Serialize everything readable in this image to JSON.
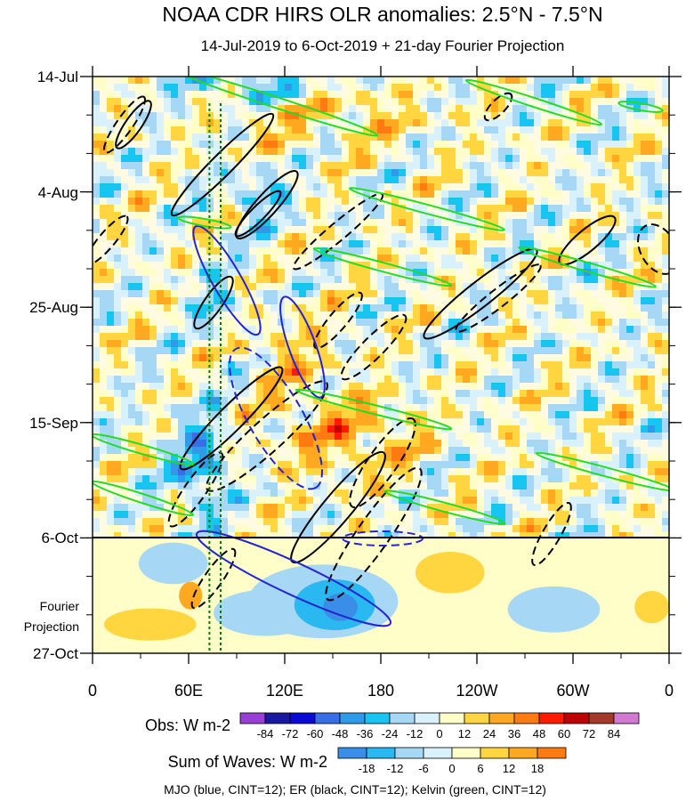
{
  "chart_data": {
    "type": "heatmap",
    "title": "NOAA CDR HIRS OLR anomalies: 2.5°N - 7.5°N",
    "subtitle": "14-Jul-2019 to 6-Oct-2019 + 21-day Fourier Projection",
    "x_tick_labels": [
      "0",
      "60E",
      "120E",
      "180",
      "120W",
      "60W",
      "0"
    ],
    "x_tick_longitudes": [
      0,
      60,
      120,
      180,
      240,
      300,
      360
    ],
    "y_tick_labels": [
      "14-Jul",
      "4-Aug",
      "25-Aug",
      "15-Sep",
      "6-Oct",
      "27-Oct"
    ],
    "y_tick_days": [
      0,
      21,
      42,
      63,
      84,
      105
    ],
    "projection_label_line1": "Fourier",
    "projection_label_line2": "Projection",
    "observation_end_day": 84,
    "grid": false,
    "legend_obs": {
      "label": "Obs: W m-2",
      "levels": [
        "-84",
        "-72",
        "-60",
        "-48",
        "-36",
        "-24",
        "-12",
        "0",
        "12",
        "24",
        "36",
        "48",
        "60",
        "72",
        "84"
      ],
      "colors": [
        "#9a3fd6",
        "#1a1aa0",
        "#0a0ad8",
        "#3a6ee8",
        "#2f9be8",
        "#16c5f0",
        "#a6d8f5",
        "#d9f1fb",
        "#fffdc8",
        "#ffd640",
        "#ffa820",
        "#ff7a10",
        "#ff1a00",
        "#c00000",
        "#a33a2a",
        "#d27ad2"
      ]
    },
    "legend_waves": {
      "label": "Sum of Waves: W m-2",
      "levels": [
        "-18",
        "-12",
        "-6",
        "0",
        "6",
        "12",
        "18"
      ],
      "colors": [
        "#3a8ee8",
        "#29b8f0",
        "#a6d8f5",
        "#d9f1fb",
        "#fffdc8",
        "#ffd640",
        "#ffa820",
        "#ff7a10"
      ]
    },
    "footer": "MJO (blue, CINT=12); ER (black, CINT=12); Kelvin (green, CINT=12)",
    "contour_colors": {
      "mjo": "#2525d0",
      "er": "#000000",
      "kelvin": "#22dd22"
    },
    "marker_longitudes": [
      73,
      80
    ]
  }
}
